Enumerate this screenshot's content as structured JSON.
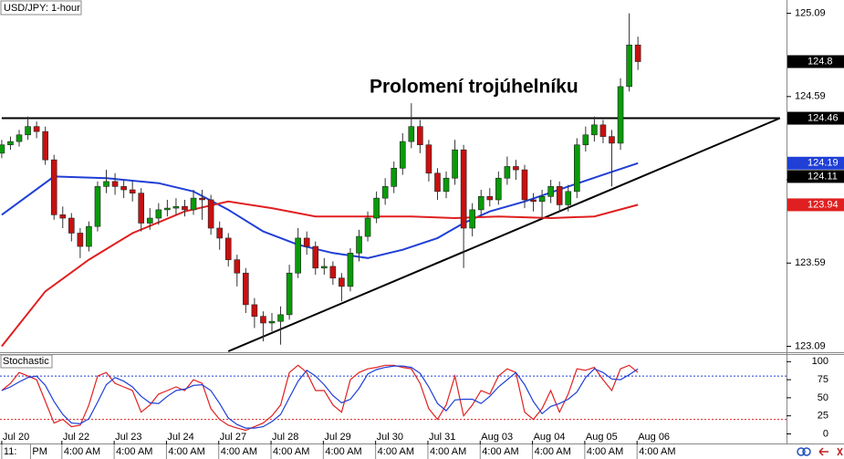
{
  "chart_data": [
    {
      "type": "candlestick",
      "title": "USD/JPY: 1-hour",
      "annotation": "Prolomení trojúhelníku",
      "up_color": "#0a9a0a",
      "down_color": "#c81010",
      "x": [
        0,
        1,
        2,
        3,
        4,
        5,
        6,
        7,
        8,
        9,
        10,
        11,
        12,
        13,
        14,
        15,
        16,
        17,
        18,
        19,
        20,
        21,
        22,
        23,
        24,
        25,
        26,
        27,
        28,
        29,
        30,
        31,
        32,
        33,
        34,
        35,
        36,
        37,
        38,
        39,
        40,
        41,
        42,
        43,
        44,
        45,
        46,
        47,
        48,
        49,
        50,
        51,
        52,
        53,
        54,
        55,
        56,
        57,
        58,
        59,
        60,
        61,
        62,
        63,
        64,
        65,
        66,
        67,
        68,
        69,
        70,
        71,
        72,
        73
      ],
      "open": [
        124.25,
        124.3,
        124.32,
        124.36,
        124.41,
        124.38,
        124.21,
        123.88,
        123.86,
        123.77,
        123.69,
        123.81,
        124.05,
        124.08,
        124.05,
        124.03,
        124.01,
        123.83,
        123.86,
        123.91,
        123.92,
        123.93,
        123.91,
        123.98,
        123.97,
        123.8,
        123.74,
        123.61,
        123.53,
        123.34,
        123.27,
        123.23,
        123.24,
        123.28,
        123.53,
        123.74,
        123.69,
        123.56,
        123.57,
        123.5,
        123.45,
        123.65,
        123.75,
        123.86,
        123.98,
        124.05,
        124.16,
        124.32,
        124.41,
        124.3,
        124.13,
        124.02,
        124.1,
        124.27,
        123.8,
        123.91,
        123.99,
        123.97,
        124.1,
        124.17,
        124.15,
        123.97,
        123.96,
        123.99,
        124.05,
        123.94,
        124.02,
        124.3,
        124.36,
        124.42,
        124.35,
        124.31,
        124.65,
        124.9
      ],
      "high": [
        124.33,
        124.35,
        124.39,
        124.47,
        124.44,
        124.41,
        124.24,
        123.93,
        123.89,
        123.8,
        123.84,
        124.08,
        124.15,
        124.13,
        124.09,
        124.08,
        124.04,
        123.92,
        123.95,
        123.97,
        123.98,
        123.97,
        124.03,
        124.03,
        124.0,
        123.84,
        123.77,
        123.64,
        123.56,
        123.38,
        123.3,
        123.29,
        123.33,
        123.58,
        123.8,
        123.78,
        123.72,
        123.62,
        123.6,
        123.53,
        123.68,
        123.79,
        123.9,
        124.02,
        124.1,
        124.2,
        124.37,
        124.55,
        124.45,
        124.33,
        124.16,
        124.14,
        124.33,
        124.3,
        123.95,
        124.03,
        124.04,
        124.14,
        124.23,
        124.21,
        124.18,
        124.01,
        124.03,
        124.09,
        124.08,
        124.06,
        124.34,
        124.41,
        124.47,
        124.45,
        124.39,
        124.7,
        125.09,
        124.95
      ],
      "low": [
        124.22,
        124.27,
        124.29,
        124.33,
        124.34,
        124.18,
        123.85,
        123.8,
        123.72,
        123.62,
        123.66,
        123.78,
        124.01,
        124.0,
        123.98,
        123.96,
        123.78,
        123.79,
        123.82,
        123.87,
        123.88,
        123.87,
        123.88,
        123.85,
        123.76,
        123.67,
        123.57,
        123.45,
        123.29,
        123.2,
        123.12,
        123.18,
        123.1,
        123.25,
        123.5,
        123.64,
        123.52,
        123.52,
        123.46,
        123.36,
        123.42,
        123.6,
        123.72,
        123.83,
        123.94,
        124.01,
        124.12,
        124.28,
        124.25,
        124.08,
        123.97,
        123.98,
        124.06,
        123.56,
        123.75,
        123.87,
        123.93,
        123.94,
        124.06,
        124.09,
        123.92,
        123.9,
        123.86,
        123.95,
        123.9,
        123.9,
        123.98,
        124.26,
        124.32,
        124.31,
        124.05,
        124.27,
        124.62,
        124.75
      ],
      "close": [
        124.3,
        124.32,
        124.36,
        124.41,
        124.38,
        124.21,
        123.88,
        123.86,
        123.77,
        123.69,
        123.81,
        124.05,
        124.08,
        124.05,
        124.03,
        124.01,
        123.83,
        123.86,
        123.91,
        123.92,
        123.93,
        123.91,
        123.98,
        123.97,
        123.8,
        123.74,
        123.61,
        123.53,
        123.34,
        123.27,
        123.23,
        123.24,
        123.28,
        123.53,
        123.74,
        123.69,
        123.56,
        123.57,
        123.5,
        123.45,
        123.65,
        123.75,
        123.86,
        123.98,
        124.05,
        124.16,
        124.32,
        124.41,
        124.3,
        124.13,
        124.02,
        124.1,
        124.27,
        123.8,
        123.91,
        123.99,
        123.97,
        124.1,
        124.17,
        124.15,
        123.97,
        123.96,
        123.99,
        124.05,
        123.94,
        124.02,
        124.3,
        124.36,
        124.42,
        124.35,
        124.31,
        124.65,
        124.9,
        124.8
      ],
      "series": [
        {
          "color": "#1f3fd6",
          "x": [
            0,
            6,
            12,
            18,
            22,
            26,
            30,
            34,
            38,
            42,
            46,
            50,
            53,
            56,
            60,
            65,
            69,
            73
          ],
          "values": [
            123.88,
            124.11,
            124.1,
            124.07,
            124.02,
            123.91,
            123.78,
            123.7,
            123.65,
            123.62,
            123.67,
            123.74,
            123.83,
            123.9,
            123.96,
            124.05,
            124.12,
            124.19
          ]
        },
        {
          "color": "#e02020",
          "x": [
            0,
            5,
            10,
            15,
            21,
            26,
            31,
            36,
            42,
            47,
            52,
            57,
            63,
            68,
            73
          ],
          "values": [
            123.09,
            123.42,
            123.61,
            123.77,
            123.9,
            123.96,
            123.92,
            123.87,
            123.87,
            123.87,
            123.86,
            123.87,
            123.86,
            123.87,
            123.94
          ]
        }
      ],
      "trendlines": [
        {
          "color": "#000000",
          "x": [
            0,
            89.3
          ],
          "values": [
            124.46,
            124.46
          ]
        },
        {
          "color": "#000000",
          "x": [
            26,
            89.3
          ],
          "values": [
            123.06,
            124.46
          ]
        }
      ],
      "price_markers": [
        {
          "value": 124.8,
          "color": "#000000"
        },
        {
          "value": 124.46,
          "color": "#000000"
        },
        {
          "value": 124.19,
          "color": "#1f3fd6"
        },
        {
          "value": 124.11,
          "color": "#000000"
        },
        {
          "value": 123.94,
          "color": "#e02020"
        }
      ],
      "xlim": [
        -0.2,
        90.05
      ],
      "ylim": [
        123.06,
        125.17
      ],
      "yticks": [
        123.09,
        123.59,
        124.09,
        124.59,
        125.09
      ]
    },
    {
      "type": "line",
      "title": "Stochastic",
      "series": [
        {
          "color": "#e02020",
          "values": [
            60,
            70,
            85,
            80,
            75,
            45,
            15,
            20,
            10,
            12,
            40,
            80,
            85,
            70,
            65,
            60,
            30,
            40,
            55,
            60,
            65,
            60,
            75,
            70,
            35,
            20,
            12,
            8,
            5,
            10,
            15,
            25,
            40,
            85,
            95,
            85,
            60,
            60,
            40,
            30,
            75,
            85,
            90,
            92,
            95,
            95,
            92,
            90,
            70,
            35,
            20,
            40,
            80,
            25,
            40,
            60,
            55,
            80,
            90,
            85,
            30,
            20,
            35,
            60,
            30,
            55,
            90,
            88,
            92,
            75,
            60,
            90,
            95,
            85
          ]
        },
        {
          "color": "#1f3fd6",
          "values": [
            60,
            65,
            72,
            78,
            80,
            67,
            45,
            27,
            15,
            14,
            21,
            44,
            68,
            78,
            73,
            65,
            52,
            43,
            42,
            52,
            60,
            62,
            67,
            68,
            60,
            42,
            22,
            13,
            8,
            8,
            10,
            17,
            27,
            50,
            73,
            88,
            80,
            68,
            53,
            43,
            48,
            63,
            83,
            89,
            92,
            94,
            94,
            92,
            84,
            65,
            42,
            32,
            47,
            48,
            48,
            42,
            52,
            65,
            75,
            85,
            68,
            45,
            28,
            38,
            42,
            48,
            58,
            78,
            90,
            85,
            76,
            75,
            82,
            90
          ]
        }
      ],
      "levels": [
        {
          "value": 80,
          "color": "#1f3fd6"
        },
        {
          "value": 20,
          "color": "#e02020"
        }
      ],
      "ylim": [
        -9.5,
        110.5
      ],
      "yticks": [
        0,
        25,
        50,
        75,
        100
      ],
      "xticks": [
        {
          "value": 0,
          "label": "Jul 20"
        },
        {
          "value": 6.9,
          "label": "Jul 22"
        },
        {
          "value": 12.9,
          "label": "Jul 23"
        },
        {
          "value": 18.9,
          "label": "Jul 24"
        },
        {
          "value": 24.9,
          "label": "Jul 27"
        },
        {
          "value": 30.9,
          "label": "Jul 28"
        },
        {
          "value": 36.9,
          "label": "Jul 29"
        },
        {
          "value": 42.9,
          "label": "Jul 30"
        },
        {
          "value": 48.9,
          "label": "Jul 31"
        },
        {
          "value": 54.9,
          "label": "Aug 03"
        },
        {
          "value": 60.9,
          "label": "Aug 04"
        },
        {
          "value": 66.9,
          "label": "Aug 05"
        },
        {
          "value": 72.9,
          "label": "Aug 06"
        }
      ],
      "time_labels": [
        {
          "value": 0,
          "label": "11:"
        },
        {
          "value": 3.3,
          "label": "PM"
        },
        {
          "value": 6.9,
          "label": "4:00 AM"
        },
        {
          "value": 12.9,
          "label": "4:00 AM"
        },
        {
          "value": 18.9,
          "label": "4:00 AM"
        },
        {
          "value": 24.9,
          "label": "4:00 AM"
        },
        {
          "value": 30.9,
          "label": "4:00 AM"
        },
        {
          "value": 36.9,
          "label": "4:00 AM"
        },
        {
          "value": 42.9,
          "label": "4:00 AM"
        },
        {
          "value": 48.9,
          "label": "4:00 AM"
        },
        {
          "value": 54.9,
          "label": "4:00 AM"
        },
        {
          "value": 60.9,
          "label": "4:00 AM"
        },
        {
          "value": 66.9,
          "label": "4:00 AM"
        },
        {
          "value": 72.9,
          "label": "4:00 AM"
        }
      ]
    }
  ]
}
